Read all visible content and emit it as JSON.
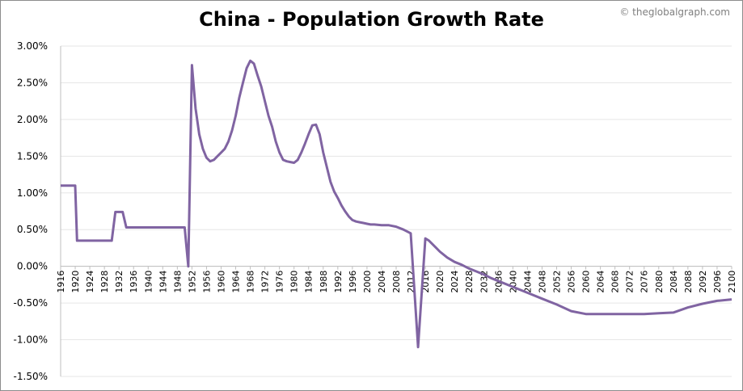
{
  "title": "China - Population Growth Rate",
  "copyright": "© theglobalgraph.com",
  "chart_data": {
    "type": "line",
    "title": "China - Population Growth Rate",
    "xlabel": "",
    "ylabel": "",
    "ylim": [
      -1.5,
      3.0
    ],
    "xlim": [
      1916,
      2100
    ],
    "y_ticks": [
      "3.00%",
      "2.50%",
      "2.00%",
      "1.50%",
      "1.00%",
      "0.50%",
      "0.00%",
      "-0.50%",
      "-1.00%",
      "-1.50%"
    ],
    "x_ticks": [
      "1916",
      "1920",
      "1924",
      "1928",
      "1932",
      "1936",
      "1940",
      "1944",
      "1948",
      "1952",
      "1956",
      "1960",
      "1964",
      "1968",
      "1972",
      "1976",
      "1980",
      "1984",
      "1988",
      "1992",
      "1996",
      "2000",
      "2004",
      "2008",
      "2012",
      "2016",
      "2020",
      "2024",
      "2028",
      "2032",
      "2036",
      "2040",
      "2044",
      "2048",
      "2052",
      "2056",
      "2060",
      "2064",
      "2068",
      "2072",
      "2076",
      "2080",
      "2084",
      "2088",
      "2092",
      "2096",
      "2100"
    ],
    "grid": true,
    "line_color": "#8064a2",
    "series": [
      {
        "x": [
          1916,
          1920,
          1920.5,
          1930,
          1931,
          1933,
          1934,
          1950,
          1951,
          1952,
          1953,
          1954,
          1955,
          1956,
          1957,
          1958,
          1959,
          1960,
          1961,
          1962,
          1963,
          1964,
          1965,
          1966,
          1967,
          1968,
          1969,
          1970,
          1971,
          1972,
          1973,
          1974,
          1975,
          1976,
          1977,
          1978,
          1979,
          1980,
          1981,
          1982,
          1983,
          1984,
          1985,
          1986,
          1987,
          1988,
          1989,
          1990,
          1991,
          1992,
          1993,
          1994,
          1995,
          1996,
          1997,
          1998,
          1999,
          2000,
          2001,
          2002,
          2004,
          2006,
          2008,
          2010,
          2012,
          2014,
          2016,
          2017,
          2018,
          2019,
          2020,
          2022,
          2024,
          2026,
          2028,
          2030,
          2032,
          2034,
          2036,
          2040,
          2044,
          2048,
          2052,
          2056,
          2060,
          2064,
          2068,
          2072,
          2076,
          2080,
          2084,
          2088,
          2092,
          2096,
          2100
        ],
        "y": [
          1.1,
          1.1,
          0.35,
          0.35,
          0.74,
          0.74,
          0.53,
          0.53,
          0.0,
          2.74,
          2.15,
          1.8,
          1.6,
          1.48,
          1.43,
          1.45,
          1.5,
          1.55,
          1.6,
          1.7,
          1.85,
          2.05,
          2.3,
          2.5,
          2.7,
          2.8,
          2.76,
          2.6,
          2.45,
          2.25,
          2.05,
          1.9,
          1.7,
          1.55,
          1.45,
          1.43,
          1.42,
          1.41,
          1.45,
          1.55,
          1.67,
          1.8,
          1.92,
          1.93,
          1.8,
          1.55,
          1.35,
          1.15,
          1.02,
          0.93,
          0.83,
          0.75,
          0.68,
          0.63,
          0.61,
          0.6,
          0.59,
          0.58,
          0.57,
          0.57,
          0.56,
          0.56,
          0.54,
          0.5,
          0.45,
          -1.1,
          0.38,
          0.35,
          0.3,
          0.25,
          0.2,
          0.12,
          0.06,
          0.02,
          -0.03,
          -0.07,
          -0.11,
          -0.16,
          -0.2,
          -0.28,
          -0.36,
          -0.44,
          -0.52,
          -0.61,
          -0.65,
          -0.65,
          -0.65,
          -0.65,
          -0.65,
          -0.64,
          -0.63,
          -0.56,
          -0.51,
          -0.47,
          -0.45
        ]
      }
    ]
  }
}
